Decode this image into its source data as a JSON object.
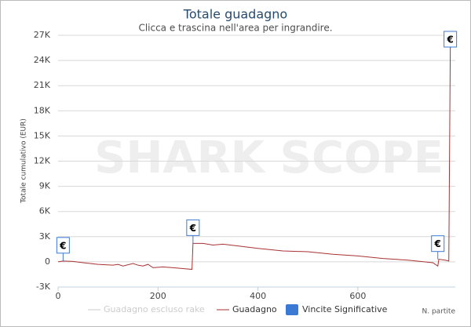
{
  "chart_data": {
    "type": "line",
    "title": "Totale guadagno",
    "subtitle": "Clicca e trascina nell'area per ingrandire.",
    "watermark": "SHARK SCOPE",
    "y_label": "Totale cumulativo (EUR)",
    "x_label": "N. partite",
    "x": [
      0,
      10,
      30,
      50,
      80,
      110,
      120,
      130,
      150,
      160,
      170,
      180,
      190,
      210,
      230,
      250,
      268,
      270,
      290,
      310,
      330,
      360,
      400,
      450,
      500,
      550,
      600,
      650,
      700,
      750,
      760,
      762,
      775,
      782,
      785,
      787
    ],
    "series": [
      {
        "name": "Guadagno escluso rake",
        "color": "#cccccc",
        "visible": false
      },
      {
        "name": "Guadagno",
        "color": "#a83232",
        "values": [
          0,
          100,
          50,
          -100,
          -300,
          -400,
          -300,
          -500,
          -200,
          -400,
          -500,
          -300,
          -700,
          -600,
          -700,
          -800,
          -900,
          2200,
          2200,
          2000,
          2100,
          1900,
          1600,
          1300,
          1200,
          900,
          700,
          400,
          200,
          -100,
          -500,
          300,
          200,
          100,
          25500,
          25700
        ]
      }
    ],
    "flags": {
      "name": "Vincite Significative",
      "color": "#3a7ad5",
      "label": "€",
      "x": [
        10,
        270,
        760,
        785
      ],
      "values": [
        100,
        2200,
        300,
        25500
      ]
    },
    "xlim": [
      0,
      795
    ],
    "ylim": [
      -3000,
      27000
    ],
    "xticks": [
      0,
      200,
      400,
      600
    ],
    "yticks": [
      {
        "value": -3000,
        "label": "-3K"
      },
      0,
      {
        "value": 3000,
        "label": "3K"
      },
      {
        "value": 6000,
        "label": "6K"
      },
      {
        "value": 9000,
        "label": "9K"
      },
      {
        "value": 12000,
        "label": "12K"
      },
      {
        "value": 15000,
        "label": "15K"
      },
      {
        "value": 18000,
        "label": "18K"
      },
      {
        "value": 21000,
        "label": "21K"
      },
      {
        "value": 24000,
        "label": "24K"
      },
      {
        "value": 27000,
        "label": "27K"
      }
    ],
    "grid": true
  }
}
